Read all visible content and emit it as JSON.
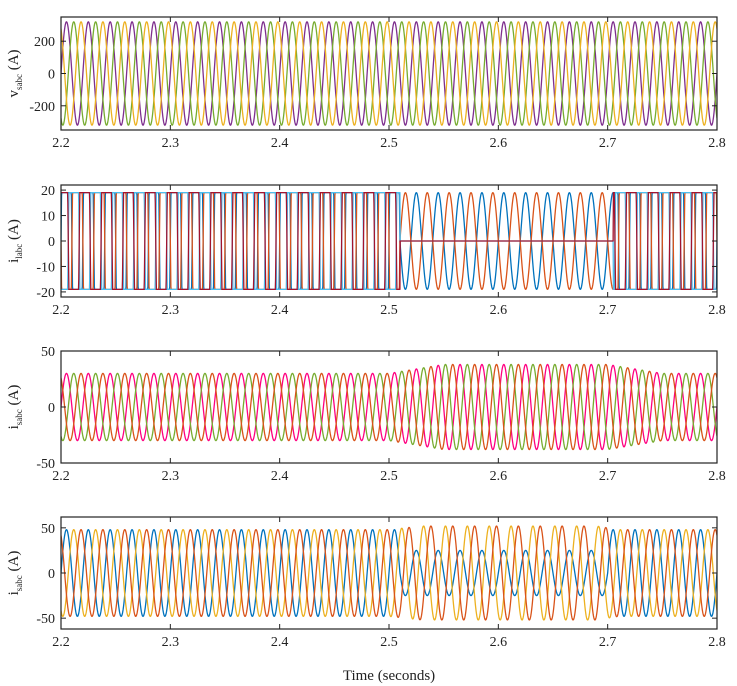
{
  "chart_data": [
    {
      "type": "line",
      "ylabel_main": "v",
      "ylabel_sub": "sabc",
      "ylabel_unit": " (A)",
      "xlim": [
        2.2,
        2.8
      ],
      "ylim": [
        -350,
        350
      ],
      "xticks": [
        2.2,
        2.3,
        2.4,
        2.5,
        2.6,
        2.7,
        2.8
      ],
      "xtick_labels": [
        "2.2",
        "2.3",
        "2.4",
        "2.5",
        "2.6",
        "2.7",
        "2.8"
      ],
      "yticks": [
        -200,
        0,
        200
      ],
      "ytick_labels": [
        "-200",
        "0",
        "200"
      ],
      "frequency_hz": 50,
      "waveform": "sine",
      "series": [
        {
          "phase_deg": 0,
          "color": "#7e2f8e",
          "amplitude_segments": [
            {
              "t0": 2.2,
              "t1": 2.8,
              "amp": 320
            }
          ]
        },
        {
          "phase_deg": -120,
          "color": "#77ac30",
          "amplitude_segments": [
            {
              "t0": 2.2,
              "t1": 2.8,
              "amp": 320
            }
          ]
        },
        {
          "phase_deg": 120,
          "color": "#edb120",
          "amplitude_segments": [
            {
              "t0": 2.2,
              "t1": 2.8,
              "amp": 320
            }
          ]
        }
      ]
    },
    {
      "type": "line",
      "ylabel_main": "i",
      "ylabel_sub": "labc",
      "ylabel_unit": " (A)",
      "xlim": [
        2.2,
        2.8
      ],
      "ylim": [
        -22,
        22
      ],
      "xticks": [
        2.2,
        2.3,
        2.4,
        2.5,
        2.6,
        2.7,
        2.8
      ],
      "xtick_labels": [
        "2.2",
        "2.3",
        "2.4",
        "2.5",
        "2.6",
        "2.7",
        "2.8"
      ],
      "yticks": [
        -20,
        -10,
        0,
        10,
        20
      ],
      "ytick_labels": [
        "-20",
        "-10",
        "0",
        "10",
        "20"
      ],
      "frequency_hz": 50,
      "waveform_segments": [
        {
          "t0": 2.2,
          "t1": 2.51,
          "shape": "square",
          "amp": 19
        },
        {
          "t0": 2.51,
          "t1": 2.705,
          "shape": "sine",
          "amp": 19
        },
        {
          "t0": 2.705,
          "t1": 2.8,
          "shape": "square",
          "amp": 19
        }
      ],
      "series": [
        {
          "phase_deg": 0,
          "color": "#0072bd",
          "amplitude_segments": [
            {
              "t0": 2.2,
              "t1": 2.8,
              "amp": 19
            }
          ]
        },
        {
          "phase_deg": 180,
          "color": "#d95319",
          "amplitude_segments": [
            {
              "t0": 2.2,
              "t1": 2.8,
              "amp": 19
            }
          ]
        },
        {
          "phase_deg": -120,
          "color": "#4dbeee",
          "amplitude_segments": [
            {
              "t0": 2.2,
              "t1": 2.51,
              "amp": 19
            },
            {
              "t0": 2.51,
              "t1": 2.705,
              "amp": 0
            },
            {
              "t0": 2.705,
              "t1": 2.8,
              "amp": 19
            }
          ]
        },
        {
          "phase_deg": 60,
          "color": "#a2142f",
          "amplitude_segments": [
            {
              "t0": 2.2,
              "t1": 2.51,
              "amp": 19
            },
            {
              "t0": 2.51,
              "t1": 2.705,
              "amp": 0
            },
            {
              "t0": 2.705,
              "t1": 2.8,
              "amp": 19
            }
          ]
        }
      ]
    },
    {
      "type": "line",
      "ylabel_main": "i",
      "ylabel_sub": "sabc",
      "ylabel_unit": " (A)",
      "xlim": [
        2.2,
        2.8
      ],
      "ylim": [
        -50,
        50
      ],
      "xticks": [
        2.2,
        2.3,
        2.4,
        2.5,
        2.6,
        2.7,
        2.8
      ],
      "xtick_labels": [
        "2.2",
        "2.3",
        "2.4",
        "2.5",
        "2.6",
        "2.7",
        "2.8"
      ],
      "yticks": [
        -50,
        0,
        50
      ],
      "ytick_labels": [
        "-50",
        "0",
        "50"
      ],
      "frequency_hz": 50,
      "waveform": "sine",
      "series": [
        {
          "phase_deg": 0,
          "color": "#ff0080",
          "amplitude_segments": [
            {
              "t0": 2.2,
              "t1": 2.5,
              "amp": 30
            },
            {
              "t0": 2.55,
              "t1": 2.7,
              "amp": 38
            },
            {
              "t0": 2.75,
              "t1": 2.8,
              "amp": 30
            }
          ]
        },
        {
          "phase_deg": -120,
          "color": "#77ac30",
          "amplitude_segments": [
            {
              "t0": 2.2,
              "t1": 2.5,
              "amp": 30
            },
            {
              "t0": 2.55,
              "t1": 2.7,
              "amp": 38
            },
            {
              "t0": 2.75,
              "t1": 2.8,
              "amp": 30
            }
          ]
        },
        {
          "phase_deg": 120,
          "color": "#d95319",
          "amplitude_segments": [
            {
              "t0": 2.2,
              "t1": 2.5,
              "amp": 30
            },
            {
              "t0": 2.55,
              "t1": 2.7,
              "amp": 38
            },
            {
              "t0": 2.75,
              "t1": 2.8,
              "amp": 30
            }
          ]
        }
      ]
    },
    {
      "type": "line",
      "ylabel_main": "i",
      "ylabel_sub": "sabc",
      "ylabel_unit": " (A)",
      "xlim": [
        2.2,
        2.8
      ],
      "ylim": [
        -62,
        62
      ],
      "xticks": [
        2.2,
        2.3,
        2.4,
        2.5,
        2.6,
        2.7,
        2.8
      ],
      "xtick_labels": [
        "2.2",
        "2.3",
        "2.4",
        "2.5",
        "2.6",
        "2.7",
        "2.8"
      ],
      "yticks": [
        -50,
        0,
        50
      ],
      "ytick_labels": [
        "-50",
        "0",
        "50"
      ],
      "xlabel": "Time (seconds)",
      "frequency_hz": 50,
      "waveform": "sine",
      "series": [
        {
          "phase_deg": 0,
          "color": "#0072bd",
          "amplitude_segments": [
            {
              "t0": 2.2,
              "t1": 2.51,
              "amp": 48
            },
            {
              "t0": 2.51,
              "t1": 2.7,
              "amp": 25
            },
            {
              "t0": 2.7,
              "t1": 2.8,
              "amp": 48
            }
          ]
        },
        {
          "phase_deg": -120,
          "color": "#edb120",
          "amplitude_segments": [
            {
              "t0": 2.2,
              "t1": 2.5,
              "amp": 48
            },
            {
              "t0": 2.53,
              "t1": 2.69,
              "amp": 52
            },
            {
              "t0": 2.71,
              "t1": 2.8,
              "amp": 48
            }
          ]
        },
        {
          "phase_deg": 120,
          "color": "#d95319",
          "amplitude_segments": [
            {
              "t0": 2.2,
              "t1": 2.5,
              "amp": 48
            },
            {
              "t0": 2.53,
              "t1": 2.69,
              "amp": 52
            },
            {
              "t0": 2.71,
              "t1": 2.8,
              "amp": 48
            }
          ]
        }
      ]
    }
  ]
}
